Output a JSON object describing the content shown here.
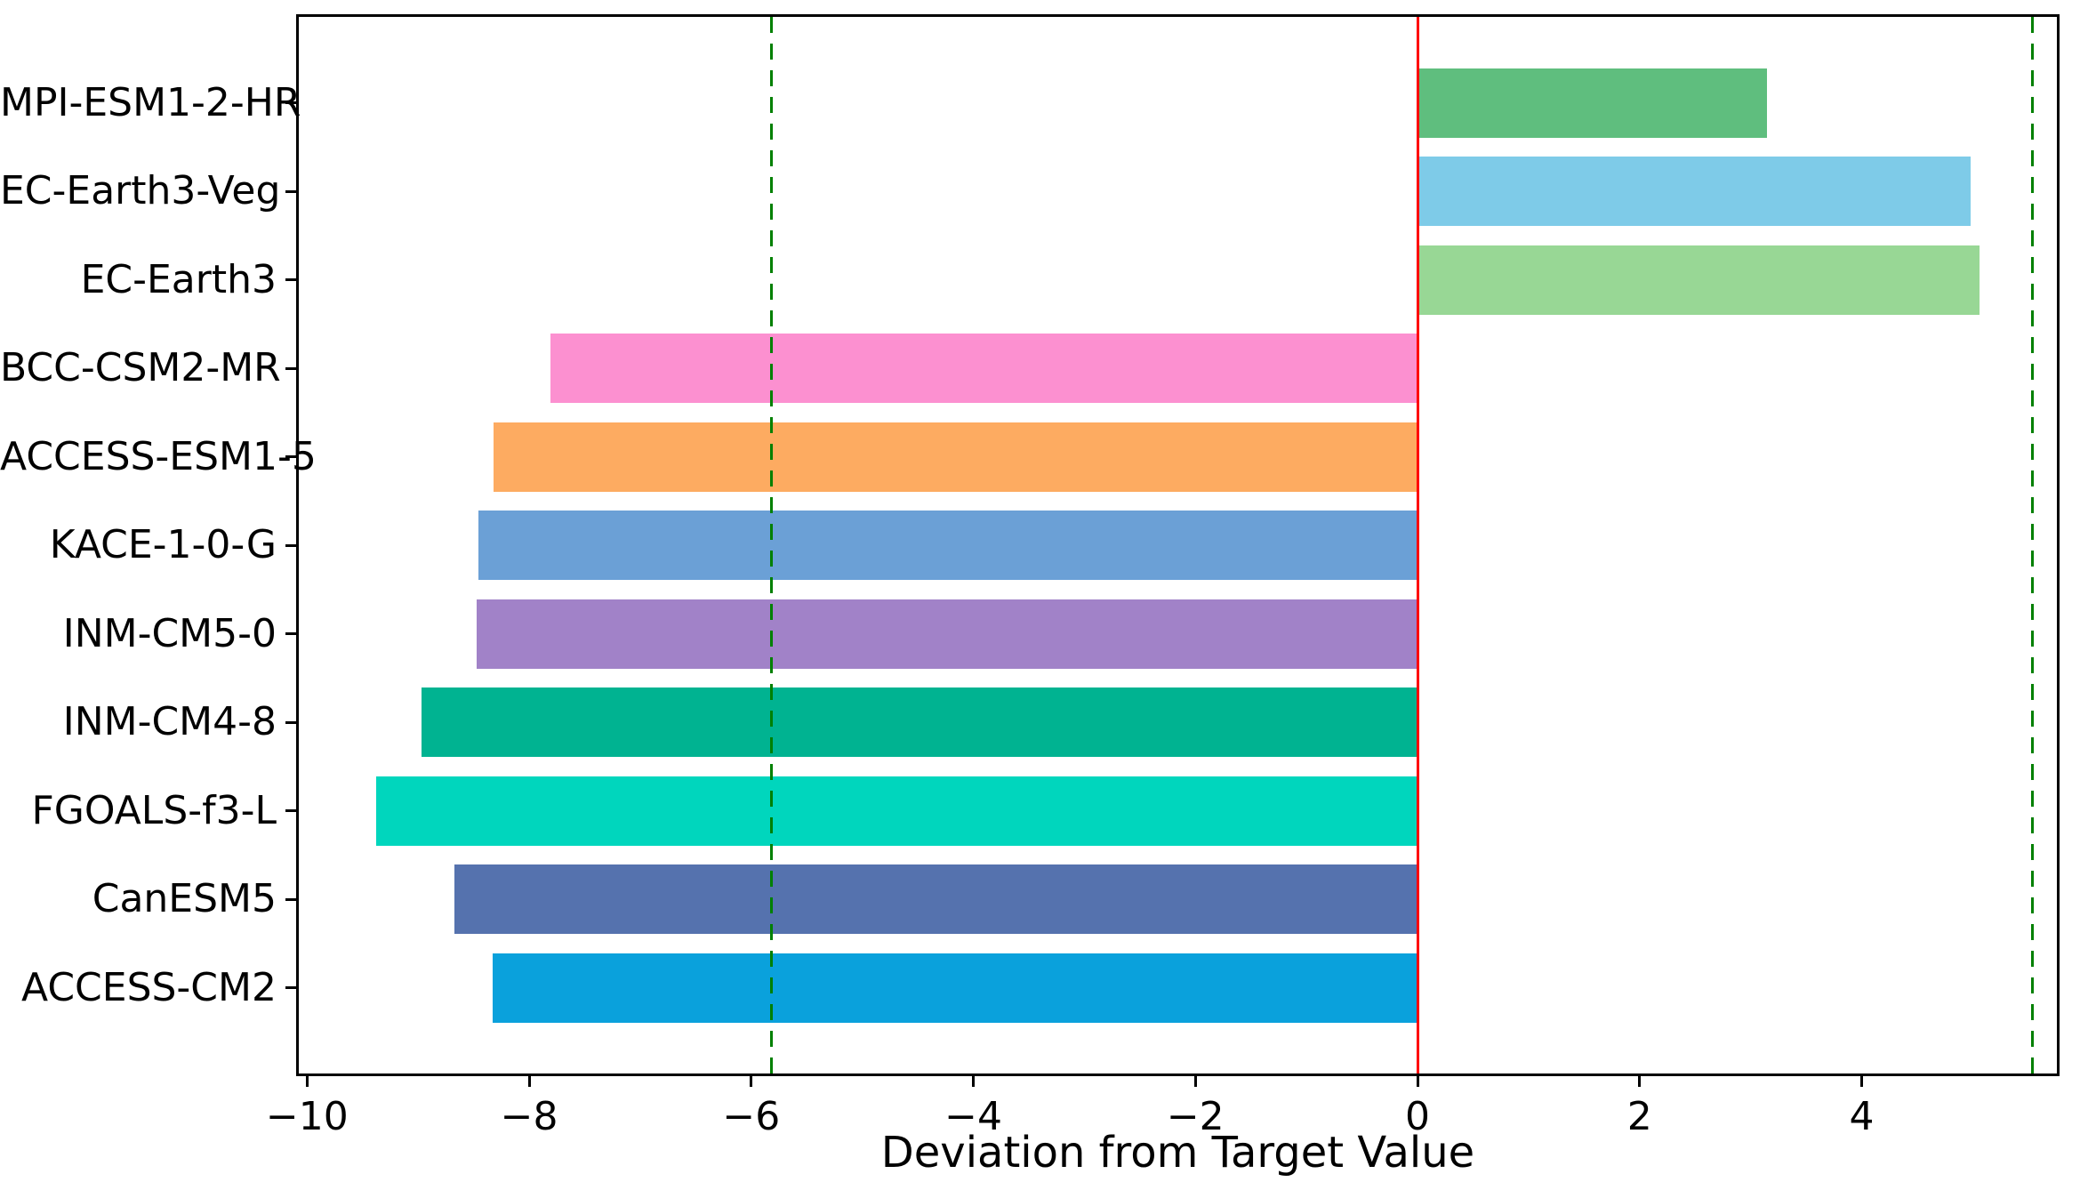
{
  "chart_data": {
    "type": "bar",
    "orientation": "horizontal",
    "title": "",
    "xlabel": "Deviation from Target Value",
    "ylabel": "",
    "grid": false,
    "legend": "none",
    "xlim": [
      -10.1,
      5.78
    ],
    "x_ticks": [
      {
        "value": -10,
        "label": "−10"
      },
      {
        "value": -8,
        "label": "−8"
      },
      {
        "value": -6,
        "label": "−6"
      },
      {
        "value": -4,
        "label": "−4"
      },
      {
        "value": -2,
        "label": "−2"
      },
      {
        "value": 0,
        "label": "0"
      },
      {
        "value": 2,
        "label": "2"
      },
      {
        "value": 4,
        "label": "4"
      }
    ],
    "categories": [
      "MPI-ESM1-2-HR",
      "EC-Earth3-Veg",
      "EC-Earth3",
      "BCC-CSM2-MR",
      "ACCESS-ESM1-5",
      "KACE-1-0-G",
      "INM-CM5-0",
      "INM-CM4-8",
      "FGOALS-f3-L",
      "CanESM5",
      "ACCESS-CM2"
    ],
    "values": [
      3.15,
      4.98,
      5.06,
      -7.81,
      -8.32,
      -8.46,
      -8.47,
      -8.97,
      -9.38,
      -8.67,
      -8.33
    ],
    "bar_colors": [
      "#5fbe7e",
      "#7ecbe8",
      "#98d795",
      "#fc90d0",
      "#fdab61",
      "#6ba0d6",
      "#a182c8",
      "#00b391",
      "#00d6bd",
      "#5572ae",
      "#0aa1dc"
    ],
    "reference_lines": [
      {
        "value": 0,
        "color": "#ff0000",
        "style": "solid",
        "name": "zero-reference-line"
      },
      {
        "value": -5.82,
        "color": "#008000",
        "style": "dashed",
        "name": "lower-threshold-line"
      },
      {
        "value": 5.54,
        "color": "#008000",
        "style": "dashed",
        "name": "upper-threshold-line"
      }
    ],
    "colors": {
      "spine": "#000000",
      "text": "#000000",
      "background": "#ffffff"
    }
  }
}
